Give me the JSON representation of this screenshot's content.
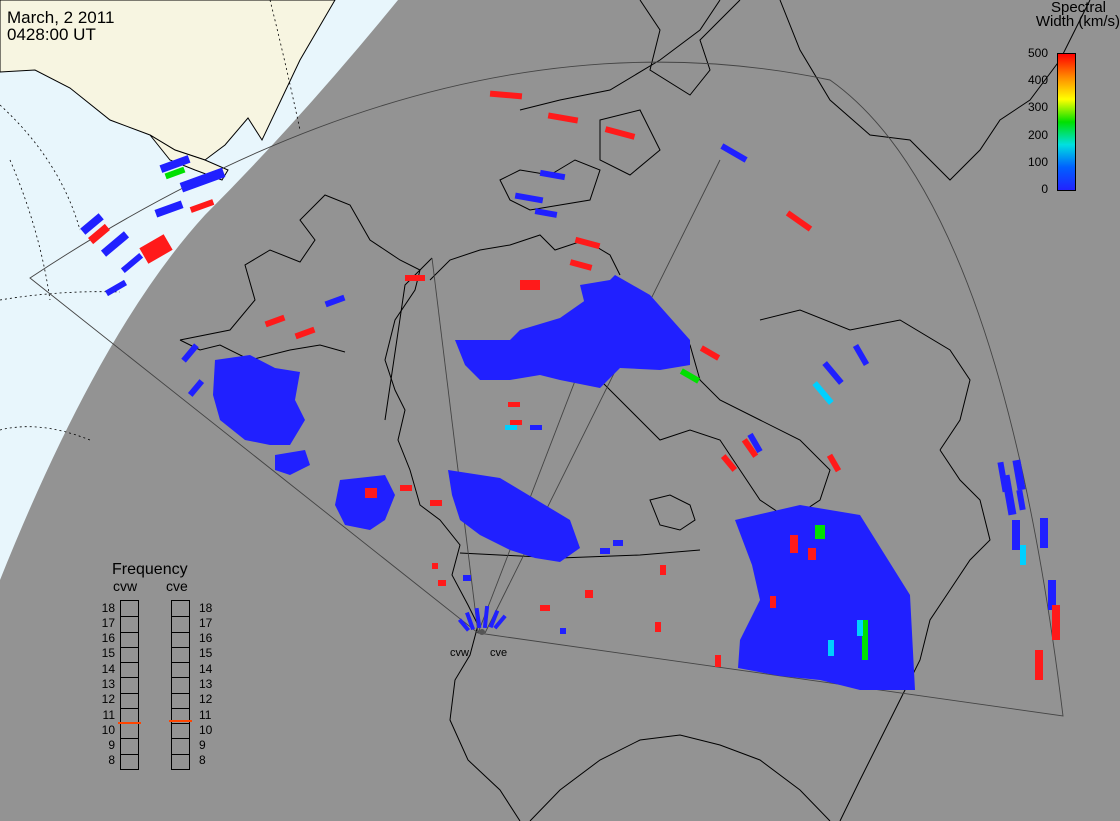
{
  "header": {
    "date": "March, 2 2011",
    "time": "0428:00 UT"
  },
  "colorbar": {
    "title_line1": "Spectral",
    "title_line2": "Width (km/s)",
    "ticks": [
      "500",
      "400",
      "300",
      "200",
      "100",
      "0"
    ],
    "gradient": [
      "#ff0000",
      "#ff8800",
      "#ffff00",
      "#00e000",
      "#00e0e0",
      "#0060ff",
      "#2222ff"
    ]
  },
  "frequency": {
    "title": "Frequency",
    "cvw_label": "cvw",
    "cve_label": "cve",
    "ticks": [
      "18",
      "17",
      "16",
      "15",
      "14",
      "13",
      "12",
      "11",
      "10",
      "9",
      "8"
    ],
    "cvw_value": 10.6,
    "cve_value": 10.7,
    "marker_color": "#ff4400"
  },
  "radars": {
    "cvw": "cvw",
    "cve": "cve"
  },
  "colors": {
    "background_dark": "#939393",
    "daylight": "#e8f6fc",
    "land_daylight": "#f7f5e1",
    "blue": "#2020ff",
    "red": "#ff1a1a",
    "cyan": "#00d0ff",
    "green": "#00e000"
  }
}
